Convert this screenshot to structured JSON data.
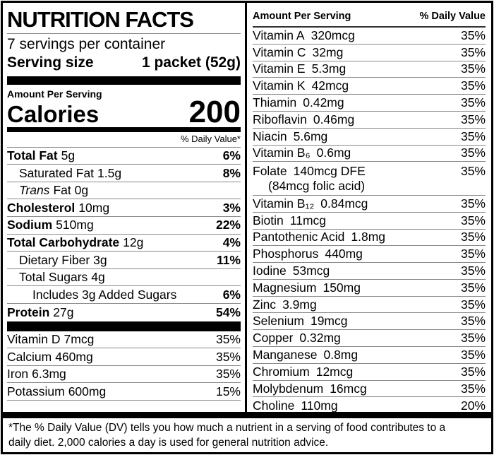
{
  "left_panel": {
    "title": "NUTRITION FACTS",
    "servings_per_container": "7 servings per container",
    "serving_size_label": "Serving size",
    "serving_size_value": "1 packet (52g)",
    "amount_per_serving_label": "Amount Per Serving",
    "calories_label": "Calories",
    "calories_value": "200",
    "daily_value_header": "% Daily Value*",
    "nutrients": [
      {
        "name": "Total Fat",
        "amount": "5g",
        "dv": "6%",
        "bold": true,
        "indent": 0
      },
      {
        "name": "Saturated Fat",
        "amount": "1.5g",
        "dv": "8%",
        "indent": 1
      },
      {
        "name": "Trans",
        "amount": "Fat 0g",
        "dv": "",
        "italic": true,
        "indent": 1
      },
      {
        "name": "Cholesterol",
        "amount": "10mg",
        "dv": "3%",
        "bold": true,
        "indent": 0
      },
      {
        "name": "Sodium",
        "amount": "510mg",
        "dv": "22%",
        "bold": true,
        "indent": 0
      },
      {
        "name": "Total Carbohydrate",
        "amount": "12g",
        "dv": "4%",
        "bold": true,
        "indent": 0
      },
      {
        "name": "Dietary Fiber",
        "amount": "3g",
        "dv": "11%",
        "indent": 1
      },
      {
        "name": "Total Sugars",
        "amount": "4g",
        "dv": "",
        "indent": 1
      },
      {
        "name": "Includes 3g Added Sugars",
        "amount": "",
        "dv": "6%",
        "indent": 2
      },
      {
        "name": "Protein",
        "amount": "27g",
        "dv": "54%",
        "bold": true,
        "indent": 0
      }
    ],
    "vitamins": [
      {
        "name": "Vitamin D",
        "amount": "7mcg",
        "dv": "35%"
      },
      {
        "name": "Calcium",
        "amount": "460mg",
        "dv": "35%"
      },
      {
        "name": "Iron",
        "amount": "6.3mg",
        "dv": "35%"
      },
      {
        "name": "Potassium",
        "amount": "600mg",
        "dv": "15%"
      }
    ]
  },
  "right_panel": {
    "header_left": "Amount Per Serving",
    "header_right": "% Daily Value",
    "rows": [
      {
        "name": "Vitamin A",
        "amount": "320mcg",
        "dv": "35%"
      },
      {
        "name": "Vitamin C",
        "amount": "32mg",
        "dv": "35%"
      },
      {
        "name": "Vitamin E",
        "amount": "5.3mg",
        "dv": "35%"
      },
      {
        "name": "Vitamin K",
        "amount": "42mcg",
        "dv": "35%"
      },
      {
        "name": "Thiamin",
        "amount": "0.42mg",
        "dv": "35%"
      },
      {
        "name": "Riboflavin",
        "amount": "0.46mg",
        "dv": "35%"
      },
      {
        "name": "Niacin",
        "amount": "5.6mg",
        "dv": "35%"
      },
      {
        "name": "Vitamin B₆",
        "amount": "0.6mg",
        "dv": "35%"
      },
      {
        "name": "Folate",
        "amount": "140mcg DFE",
        "dv": "35%",
        "line2": "(84mcg folic acid)"
      },
      {
        "name": "Vitamin B₁₂",
        "amount": "0.84mcg",
        "dv": "35%"
      },
      {
        "name": "Biotin",
        "amount": "11mcg",
        "dv": "35%"
      },
      {
        "name": "Pantothenic Acid",
        "amount": "1.8mg",
        "dv": "35%"
      },
      {
        "name": "Phosphorus",
        "amount": "440mg",
        "dv": "35%"
      },
      {
        "name": "Iodine",
        "amount": "53mcg",
        "dv": "35%"
      },
      {
        "name": "Magnesium",
        "amount": "150mg",
        "dv": "35%"
      },
      {
        "name": "Zinc",
        "amount": "3.9mg",
        "dv": "35%"
      },
      {
        "name": "Selenium",
        "amount": "19mcg",
        "dv": "35%"
      },
      {
        "name": "Copper",
        "amount": "0.32mg",
        "dv": "35%"
      },
      {
        "name": "Manganese",
        "amount": "0.8mg",
        "dv": "35%"
      },
      {
        "name": "Chromium",
        "amount": "12mcg",
        "dv": "35%"
      },
      {
        "name": "Molybdenum",
        "amount": "16mcg",
        "dv": "35%"
      },
      {
        "name": "Choline",
        "amount": "110mg",
        "dv": "20%"
      }
    ]
  },
  "footnote": "*The % Daily Value (DV) tells you how much a nutrient in a serving of food contributes to a daily diet. 2,000 calories a day is used for general nutrition advice.",
  "colors": {
    "ink": "#000000",
    "hairline": "#8a8a8a",
    "background": "#ffffff"
  }
}
